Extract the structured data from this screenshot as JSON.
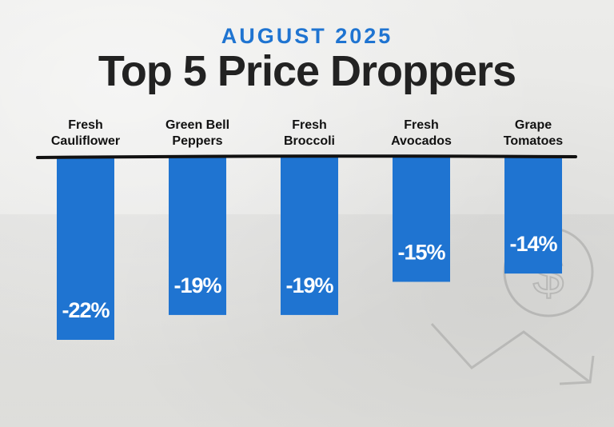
{
  "header": {
    "subtitle": "AUGUST 2025",
    "title": "Top 5 Price Droppers"
  },
  "colors": {
    "bar": "#1f74d1",
    "baseline": "#111111",
    "subtitle": "#1f74d1",
    "title": "#222222",
    "background": "#e9e9e7"
  },
  "icons": [
    "dollar-coin-icon",
    "downtrend-arrow-icon"
  ],
  "chart_data": {
    "type": "bar",
    "orientation": "vertical-downward",
    "title": "Top 5 Price Droppers",
    "subtitle": "AUGUST 2025",
    "categories": [
      [
        "Fresh",
        "Cauliflower"
      ],
      [
        "Green Bell",
        "Peppers"
      ],
      [
        "Fresh",
        "Broccoli"
      ],
      [
        "Fresh",
        "Avocados"
      ],
      [
        "Grape",
        "Tomatoes"
      ]
    ],
    "values": [
      -22,
      -19,
      -19,
      -15,
      -14
    ],
    "value_labels": [
      "-22%",
      "-19%",
      "-19%",
      "-15%",
      "-14%"
    ],
    "unit": "%",
    "ylim": [
      -22,
      0
    ],
    "grid": false,
    "legend": "none"
  }
}
